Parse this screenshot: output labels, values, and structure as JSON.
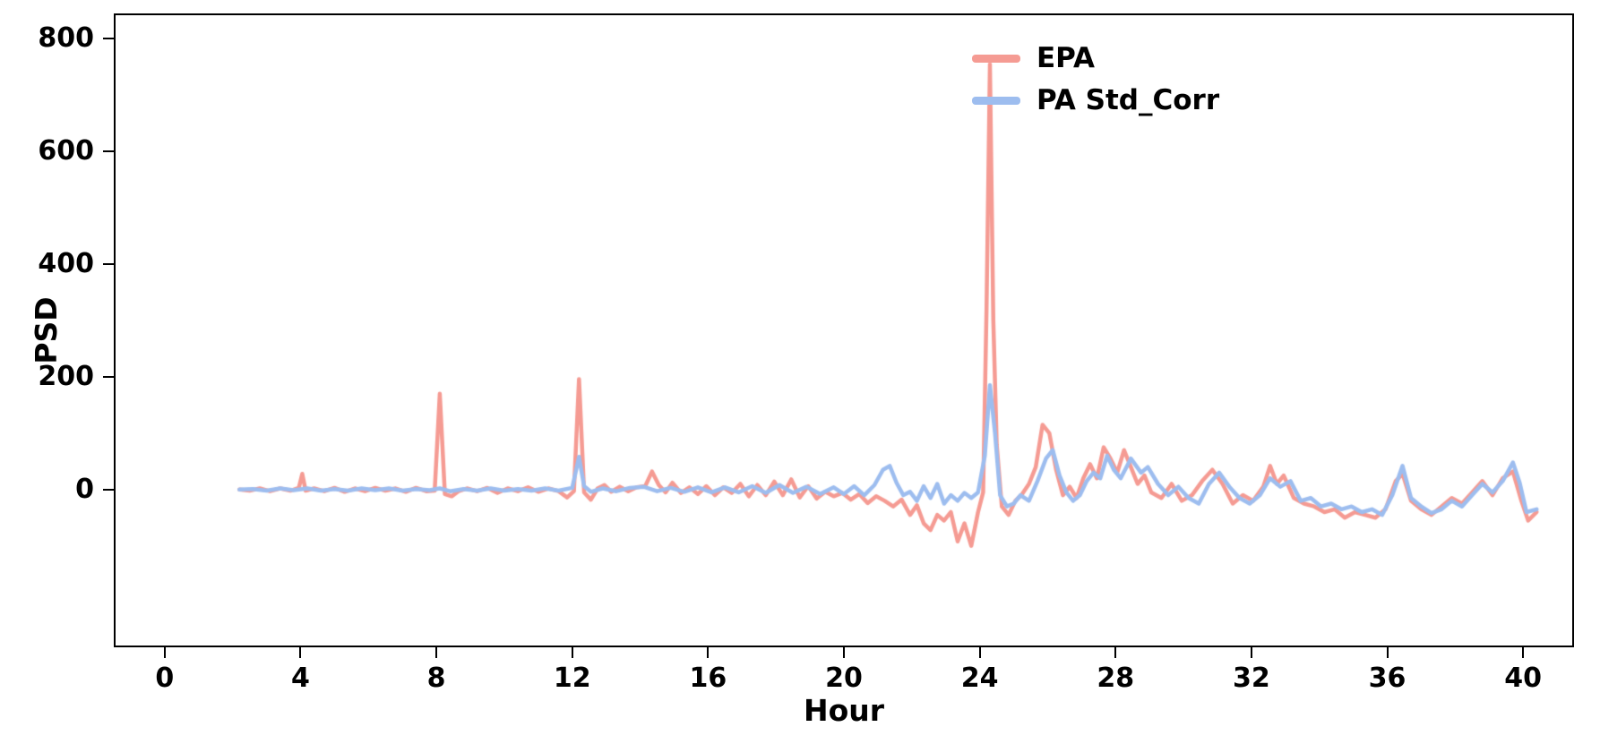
{
  "figure": {
    "background": "#ffffff",
    "border_color": "#000000"
  },
  "chart_data": {
    "type": "line",
    "title": "",
    "xlabel": "Hour",
    "ylabel": "PSD",
    "x_ticks": [
      0,
      4,
      8,
      12,
      16,
      20,
      24,
      28,
      32,
      36,
      40
    ],
    "y_ticks": [
      0,
      200,
      400,
      600,
      800
    ],
    "xlim": [
      -1.5,
      41.5
    ],
    "ylim": [
      -280,
      845
    ],
    "grid": false,
    "legend_position": "top-right-inside",
    "series": [
      {
        "name": "EPA",
        "color": "#F59B93",
        "points": [
          [
            2.2,
            0
          ],
          [
            2.5,
            -2
          ],
          [
            2.8,
            2
          ],
          [
            3.1,
            -3
          ],
          [
            3.4,
            2
          ],
          [
            3.7,
            -2
          ],
          [
            3.95,
            3
          ],
          [
            4.05,
            28
          ],
          [
            4.15,
            -2
          ],
          [
            4.4,
            2
          ],
          [
            4.7,
            -3
          ],
          [
            5,
            3
          ],
          [
            5.3,
            -4
          ],
          [
            5.6,
            2
          ],
          [
            5.9,
            -3
          ],
          [
            6.2,
            3
          ],
          [
            6.5,
            -2
          ],
          [
            6.8,
            2
          ],
          [
            7.1,
            -4
          ],
          [
            7.4,
            3
          ],
          [
            7.7,
            -3
          ],
          [
            7.95,
            -2
          ],
          [
            8.1,
            170
          ],
          [
            8.25,
            -8
          ],
          [
            8.45,
            -12
          ],
          [
            8.65,
            -3
          ],
          [
            8.9,
            2
          ],
          [
            9.2,
            -3
          ],
          [
            9.5,
            3
          ],
          [
            9.8,
            -6
          ],
          [
            10.1,
            2
          ],
          [
            10.4,
            -3
          ],
          [
            10.7,
            4
          ],
          [
            11,
            -4
          ],
          [
            11.3,
            2
          ],
          [
            11.6,
            -3
          ],
          [
            11.85,
            -14
          ],
          [
            12.05,
            -3
          ],
          [
            12.2,
            196
          ],
          [
            12.35,
            -5
          ],
          [
            12.55,
            -18
          ],
          [
            12.75,
            2
          ],
          [
            12.95,
            8
          ],
          [
            13.15,
            -4
          ],
          [
            13.4,
            5
          ],
          [
            13.65,
            -3
          ],
          [
            13.9,
            4
          ],
          [
            14.15,
            6
          ],
          [
            14.35,
            32
          ],
          [
            14.55,
            8
          ],
          [
            14.75,
            -5
          ],
          [
            14.95,
            12
          ],
          [
            15.2,
            -6
          ],
          [
            15.45,
            4
          ],
          [
            15.7,
            -8
          ],
          [
            15.95,
            6
          ],
          [
            16.2,
            -10
          ],
          [
            16.45,
            4
          ],
          [
            16.7,
            -6
          ],
          [
            16.95,
            10
          ],
          [
            17.2,
            -12
          ],
          [
            17.45,
            8
          ],
          [
            17.7,
            -10
          ],
          [
            17.95,
            14
          ],
          [
            18.2,
            -10
          ],
          [
            18.45,
            18
          ],
          [
            18.7,
            -14
          ],
          [
            18.95,
            6
          ],
          [
            19.2,
            -16
          ],
          [
            19.45,
            -4
          ],
          [
            19.7,
            -12
          ],
          [
            19.95,
            -6
          ],
          [
            20.2,
            -18
          ],
          [
            20.45,
            -8
          ],
          [
            20.7,
            -24
          ],
          [
            20.95,
            -12
          ],
          [
            21.2,
            -20
          ],
          [
            21.45,
            -30
          ],
          [
            21.7,
            -18
          ],
          [
            21.95,
            -45
          ],
          [
            22.15,
            -28
          ],
          [
            22.35,
            -60
          ],
          [
            22.55,
            -72
          ],
          [
            22.75,
            -45
          ],
          [
            22.95,
            -55
          ],
          [
            23.15,
            -40
          ],
          [
            23.35,
            -92
          ],
          [
            23.55,
            -60
          ],
          [
            23.75,
            -100
          ],
          [
            23.95,
            -40
          ],
          [
            24.1,
            -5
          ],
          [
            24.2,
            320
          ],
          [
            24.3,
            755
          ],
          [
            24.4,
            300
          ],
          [
            24.5,
            80
          ],
          [
            24.65,
            -30
          ],
          [
            24.85,
            -45
          ],
          [
            25.05,
            -20
          ],
          [
            25.25,
            -8
          ],
          [
            25.45,
            10
          ],
          [
            25.65,
            40
          ],
          [
            25.85,
            115
          ],
          [
            26.05,
            100
          ],
          [
            26.25,
            35
          ],
          [
            26.45,
            -10
          ],
          [
            26.65,
            5
          ],
          [
            26.85,
            -15
          ],
          [
            27.05,
            20
          ],
          [
            27.25,
            45
          ],
          [
            27.45,
            20
          ],
          [
            27.65,
            75
          ],
          [
            27.85,
            55
          ],
          [
            28.05,
            30
          ],
          [
            28.25,
            70
          ],
          [
            28.45,
            40
          ],
          [
            28.65,
            10
          ],
          [
            28.85,
            25
          ],
          [
            29.05,
            -5
          ],
          [
            29.35,
            -15
          ],
          [
            29.65,
            10
          ],
          [
            29.95,
            -20
          ],
          [
            30.25,
            -10
          ],
          [
            30.55,
            15
          ],
          [
            30.85,
            35
          ],
          [
            31.15,
            10
          ],
          [
            31.45,
            -25
          ],
          [
            31.75,
            -10
          ],
          [
            32.05,
            -20
          ],
          [
            32.35,
            5
          ],
          [
            32.55,
            42
          ],
          [
            32.75,
            10
          ],
          [
            32.95,
            25
          ],
          [
            33.25,
            -15
          ],
          [
            33.55,
            -25
          ],
          [
            33.85,
            -30
          ],
          [
            34.15,
            -40
          ],
          [
            34.45,
            -35
          ],
          [
            34.75,
            -50
          ],
          [
            35.05,
            -40
          ],
          [
            35.35,
            -45
          ],
          [
            35.65,
            -50
          ],
          [
            35.95,
            -35
          ],
          [
            36.25,
            15
          ],
          [
            36.45,
            28
          ],
          [
            36.7,
            -20
          ],
          [
            37,
            -35
          ],
          [
            37.3,
            -45
          ],
          [
            37.6,
            -30
          ],
          [
            37.9,
            -15
          ],
          [
            38.2,
            -25
          ],
          [
            38.5,
            -5
          ],
          [
            38.8,
            15
          ],
          [
            39.1,
            -10
          ],
          [
            39.4,
            20
          ],
          [
            39.7,
            32
          ],
          [
            39.95,
            -20
          ],
          [
            40.15,
            -55
          ],
          [
            40.4,
            -40
          ]
        ]
      },
      {
        "name": "PA Std_Corr",
        "color": "#9DBDEF",
        "points": [
          [
            2.2,
            0
          ],
          [
            2.6,
            1
          ],
          [
            3,
            -2
          ],
          [
            3.4,
            2
          ],
          [
            3.8,
            -1
          ],
          [
            4.2,
            2
          ],
          [
            4.6,
            -2
          ],
          [
            5,
            1
          ],
          [
            5.4,
            -2
          ],
          [
            5.8,
            2
          ],
          [
            6.2,
            -1
          ],
          [
            6.6,
            2
          ],
          [
            7,
            -2
          ],
          [
            7.4,
            1
          ],
          [
            7.8,
            -1
          ],
          [
            8.1,
            2
          ],
          [
            8.4,
            -3
          ],
          [
            8.8,
            1
          ],
          [
            9.2,
            -2
          ],
          [
            9.6,
            2
          ],
          [
            10,
            -2
          ],
          [
            10.4,
            1
          ],
          [
            10.8,
            -2
          ],
          [
            11.2,
            2
          ],
          [
            11.6,
            -2
          ],
          [
            12,
            3
          ],
          [
            12.2,
            58
          ],
          [
            12.35,
            6
          ],
          [
            12.55,
            -4
          ],
          [
            12.9,
            2
          ],
          [
            13.3,
            -3
          ],
          [
            13.7,
            3
          ],
          [
            14.1,
            5
          ],
          [
            14.5,
            -3
          ],
          [
            14.9,
            3
          ],
          [
            15.3,
            -4
          ],
          [
            15.7,
            4
          ],
          [
            16.1,
            -5
          ],
          [
            16.5,
            4
          ],
          [
            16.9,
            -5
          ],
          [
            17.3,
            6
          ],
          [
            17.7,
            -6
          ],
          [
            18.1,
            8
          ],
          [
            18.5,
            -6
          ],
          [
            18.9,
            5
          ],
          [
            19.3,
            -8
          ],
          [
            19.7,
            4
          ],
          [
            20,
            -8
          ],
          [
            20.3,
            6
          ],
          [
            20.6,
            -10
          ],
          [
            20.9,
            8
          ],
          [
            21.15,
            35
          ],
          [
            21.35,
            42
          ],
          [
            21.55,
            12
          ],
          [
            21.75,
            -10
          ],
          [
            21.95,
            -4
          ],
          [
            22.15,
            -20
          ],
          [
            22.35,
            6
          ],
          [
            22.55,
            -15
          ],
          [
            22.75,
            10
          ],
          [
            22.95,
            -25
          ],
          [
            23.15,
            -10
          ],
          [
            23.35,
            -20
          ],
          [
            23.55,
            -6
          ],
          [
            23.75,
            -15
          ],
          [
            23.95,
            -5
          ],
          [
            24.15,
            60
          ],
          [
            24.3,
            185
          ],
          [
            24.45,
            100
          ],
          [
            24.6,
            -10
          ],
          [
            24.8,
            -30
          ],
          [
            25,
            -25
          ],
          [
            25.2,
            -10
          ],
          [
            25.45,
            -20
          ],
          [
            25.7,
            15
          ],
          [
            25.95,
            55
          ],
          [
            26.15,
            70
          ],
          [
            26.35,
            25
          ],
          [
            26.55,
            -5
          ],
          [
            26.75,
            -20
          ],
          [
            26.95,
            -10
          ],
          [
            27.15,
            15
          ],
          [
            27.35,
            30
          ],
          [
            27.55,
            20
          ],
          [
            27.75,
            60
          ],
          [
            27.95,
            35
          ],
          [
            28.15,
            20
          ],
          [
            28.45,
            55
          ],
          [
            28.75,
            30
          ],
          [
            28.95,
            40
          ],
          [
            29.25,
            10
          ],
          [
            29.55,
            -10
          ],
          [
            29.85,
            5
          ],
          [
            30.15,
            -15
          ],
          [
            30.45,
            -25
          ],
          [
            30.75,
            10
          ],
          [
            31.05,
            30
          ],
          [
            31.35,
            5
          ],
          [
            31.65,
            -15
          ],
          [
            31.95,
            -25
          ],
          [
            32.25,
            -10
          ],
          [
            32.55,
            20
          ],
          [
            32.85,
            5
          ],
          [
            33.15,
            15
          ],
          [
            33.45,
            -20
          ],
          [
            33.75,
            -15
          ],
          [
            34.05,
            -30
          ],
          [
            34.35,
            -25
          ],
          [
            34.65,
            -35
          ],
          [
            34.95,
            -30
          ],
          [
            35.25,
            -40
          ],
          [
            35.55,
            -35
          ],
          [
            35.85,
            -45
          ],
          [
            36.15,
            -10
          ],
          [
            36.45,
            42
          ],
          [
            36.7,
            -15
          ],
          [
            37,
            -30
          ],
          [
            37.3,
            -42
          ],
          [
            37.6,
            -35
          ],
          [
            37.9,
            -20
          ],
          [
            38.2,
            -30
          ],
          [
            38.5,
            -10
          ],
          [
            38.8,
            10
          ],
          [
            39.1,
            -5
          ],
          [
            39.4,
            15
          ],
          [
            39.7,
            48
          ],
          [
            39.9,
            12
          ],
          [
            40.1,
            -40
          ],
          [
            40.4,
            -35
          ]
        ]
      }
    ]
  }
}
